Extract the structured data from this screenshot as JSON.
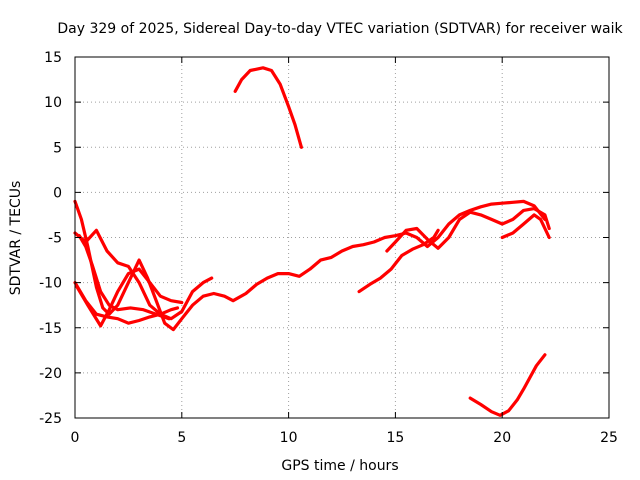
{
  "chart_data": {
    "type": "scatter",
    "title": "Day 329 of 2025, Sidereal Day-to-day VTEC variation (SDTVAR) for receiver waik",
    "xlabel": "GPS time / hours",
    "ylabel": "SDTVAR / TECUs",
    "xlim": [
      0,
      25
    ],
    "ylim": [
      -25,
      15
    ],
    "xticks": [
      0,
      5,
      10,
      15,
      20,
      25
    ],
    "yticks": [
      -25,
      -20,
      -15,
      -10,
      -5,
      0,
      5,
      10,
      15
    ],
    "xtick_labels": [
      "0",
      "5",
      "10",
      "15",
      "20",
      "25"
    ],
    "ytick_labels": [
      "-25",
      "-20",
      "-15",
      "-10",
      "-5",
      "0",
      "5",
      "10",
      "15"
    ],
    "grid": true,
    "legend": "none",
    "series_color": "#ff0000",
    "series": [
      {
        "name": "track-main",
        "points": [
          [
            0.0,
            -1.0
          ],
          [
            0.3,
            -3.0
          ],
          [
            0.6,
            -6.0
          ],
          [
            1.0,
            -10.5
          ],
          [
            1.3,
            -12.8
          ],
          [
            1.6,
            -13.5
          ],
          [
            2.0,
            -12.5
          ],
          [
            2.5,
            -10.0
          ],
          [
            3.0,
            -7.5
          ],
          [
            3.4,
            -9.5
          ],
          [
            3.8,
            -12.0
          ],
          [
            4.2,
            -14.5
          ],
          [
            4.6,
            -15.2
          ],
          [
            5.0,
            -14.0
          ],
          [
            5.5,
            -12.5
          ],
          [
            6.0,
            -11.5
          ],
          [
            6.5,
            -11.2
          ],
          [
            7.0,
            -11.5
          ],
          [
            7.4,
            -12.0
          ],
          [
            8.0,
            -11.2
          ],
          [
            8.5,
            -10.2
          ],
          [
            9.0,
            -9.5
          ],
          [
            9.5,
            -9.0
          ],
          [
            10.0,
            -9.0
          ],
          [
            10.5,
            -9.3
          ],
          [
            11.0,
            -8.5
          ],
          [
            11.5,
            -7.5
          ],
          [
            12.0,
            -7.2
          ],
          [
            12.5,
            -6.5
          ],
          [
            13.0,
            -6.0
          ],
          [
            13.5,
            -5.8
          ],
          [
            14.0,
            -5.5
          ],
          [
            14.5,
            -5.0
          ],
          [
            15.0,
            -4.8
          ],
          [
            15.5,
            -4.5
          ],
          [
            16.0,
            -5.0
          ],
          [
            16.5,
            -6.0
          ],
          [
            17.0,
            -5.0
          ],
          [
            17.5,
            -3.5
          ],
          [
            18.0,
            -2.5
          ],
          [
            18.5,
            -2.0
          ],
          [
            19.0,
            -1.6
          ],
          [
            19.5,
            -1.3
          ],
          [
            20.0,
            -1.2
          ],
          [
            20.5,
            -1.1
          ],
          [
            21.0,
            -1.0
          ],
          [
            21.5,
            -1.5
          ],
          [
            22.0,
            -3.0
          ]
        ]
      },
      {
        "name": "track-2",
        "points": [
          [
            0.0,
            -4.5
          ],
          [
            0.5,
            -5.5
          ],
          [
            1.0,
            -4.2
          ],
          [
            1.5,
            -6.5
          ],
          [
            2.0,
            -7.8
          ],
          [
            2.5,
            -8.2
          ],
          [
            3.0,
            -10.0
          ],
          [
            3.5,
            -12.5
          ],
          [
            4.0,
            -13.5
          ],
          [
            4.5,
            -14.0
          ],
          [
            5.0,
            -13.2
          ],
          [
            5.5,
            -11.0
          ],
          [
            6.0,
            -10.0
          ],
          [
            6.4,
            -9.5
          ]
        ]
      },
      {
        "name": "track-3",
        "points": [
          [
            0.0,
            -10.0
          ],
          [
            0.5,
            -12.0
          ],
          [
            1.0,
            -13.5
          ],
          [
            1.5,
            -13.8
          ],
          [
            2.0,
            -14.0
          ],
          [
            2.5,
            -14.5
          ],
          [
            3.0,
            -14.2
          ],
          [
            3.5,
            -13.8
          ],
          [
            4.0,
            -13.5
          ],
          [
            4.5,
            -13.0
          ],
          [
            4.8,
            -12.8
          ]
        ]
      },
      {
        "name": "track-4",
        "points": [
          [
            0.1,
            -10.5
          ],
          [
            0.6,
            -12.5
          ],
          [
            1.2,
            -14.8
          ],
          [
            1.6,
            -13.0
          ],
          [
            2.0,
            -11.0
          ],
          [
            2.5,
            -9.0
          ],
          [
            3.0,
            -8.5
          ],
          [
            3.5,
            -10.0
          ],
          [
            4.0,
            -11.5
          ],
          [
            4.5,
            -12.0
          ],
          [
            5.0,
            -12.2
          ]
        ]
      },
      {
        "name": "track-5",
        "points": [
          [
            0.2,
            -4.8
          ],
          [
            0.5,
            -6.0
          ],
          [
            0.8,
            -8.0
          ],
          [
            1.2,
            -11.0
          ],
          [
            1.6,
            -12.5
          ],
          [
            2.0,
            -13.0
          ],
          [
            2.6,
            -12.8
          ],
          [
            3.2,
            -13.0
          ],
          [
            3.8,
            -13.5
          ],
          [
            4.4,
            -14.0
          ]
        ]
      },
      {
        "name": "track-6",
        "points": [
          [
            13.3,
            -11.0
          ],
          [
            13.8,
            -10.2
          ],
          [
            14.3,
            -9.5
          ],
          [
            14.8,
            -8.5
          ],
          [
            15.3,
            -7.0
          ],
          [
            15.8,
            -6.3
          ],
          [
            16.3,
            -5.8
          ],
          [
            16.8,
            -5.0
          ],
          [
            17.0,
            -4.2
          ]
        ]
      },
      {
        "name": "track-7",
        "points": [
          [
            14.6,
            -6.5
          ],
          [
            15.0,
            -5.5
          ],
          [
            15.5,
            -4.2
          ],
          [
            16.0,
            -4.0
          ],
          [
            16.5,
            -5.2
          ],
          [
            17.0,
            -6.2
          ],
          [
            17.5,
            -5.0
          ],
          [
            18.0,
            -3.0
          ],
          [
            18.5,
            -2.2
          ],
          [
            19.0,
            -2.5
          ],
          [
            19.5,
            -3.0
          ],
          [
            20.0,
            -3.5
          ],
          [
            20.5,
            -3.0
          ],
          [
            21.0,
            -2.0
          ],
          [
            21.5,
            -1.8
          ],
          [
            22.0,
            -2.5
          ],
          [
            22.2,
            -4.0
          ]
        ]
      },
      {
        "name": "track-8",
        "points": [
          [
            20.0,
            -5.0
          ],
          [
            20.5,
            -4.5
          ],
          [
            21.0,
            -3.5
          ],
          [
            21.5,
            -2.5
          ],
          [
            21.8,
            -3.0
          ],
          [
            22.2,
            -5.0
          ]
        ]
      },
      {
        "name": "track-9",
        "points": [
          [
            7.5,
            11.2
          ],
          [
            7.8,
            12.5
          ],
          [
            8.2,
            13.5
          ],
          [
            8.8,
            13.8
          ],
          [
            9.2,
            13.5
          ],
          [
            9.6,
            12.0
          ],
          [
            10.0,
            9.5
          ],
          [
            10.3,
            7.5
          ],
          [
            10.6,
            5.0
          ]
        ]
      },
      {
        "name": "track-10",
        "points": [
          [
            18.5,
            -22.8
          ],
          [
            19.0,
            -23.5
          ],
          [
            19.5,
            -24.3
          ],
          [
            19.9,
            -24.7
          ],
          [
            20.3,
            -24.2
          ],
          [
            20.7,
            -23.0
          ],
          [
            21.0,
            -21.8
          ],
          [
            21.3,
            -20.5
          ],
          [
            21.6,
            -19.2
          ],
          [
            22.0,
            -18.0
          ]
        ]
      }
    ]
  }
}
